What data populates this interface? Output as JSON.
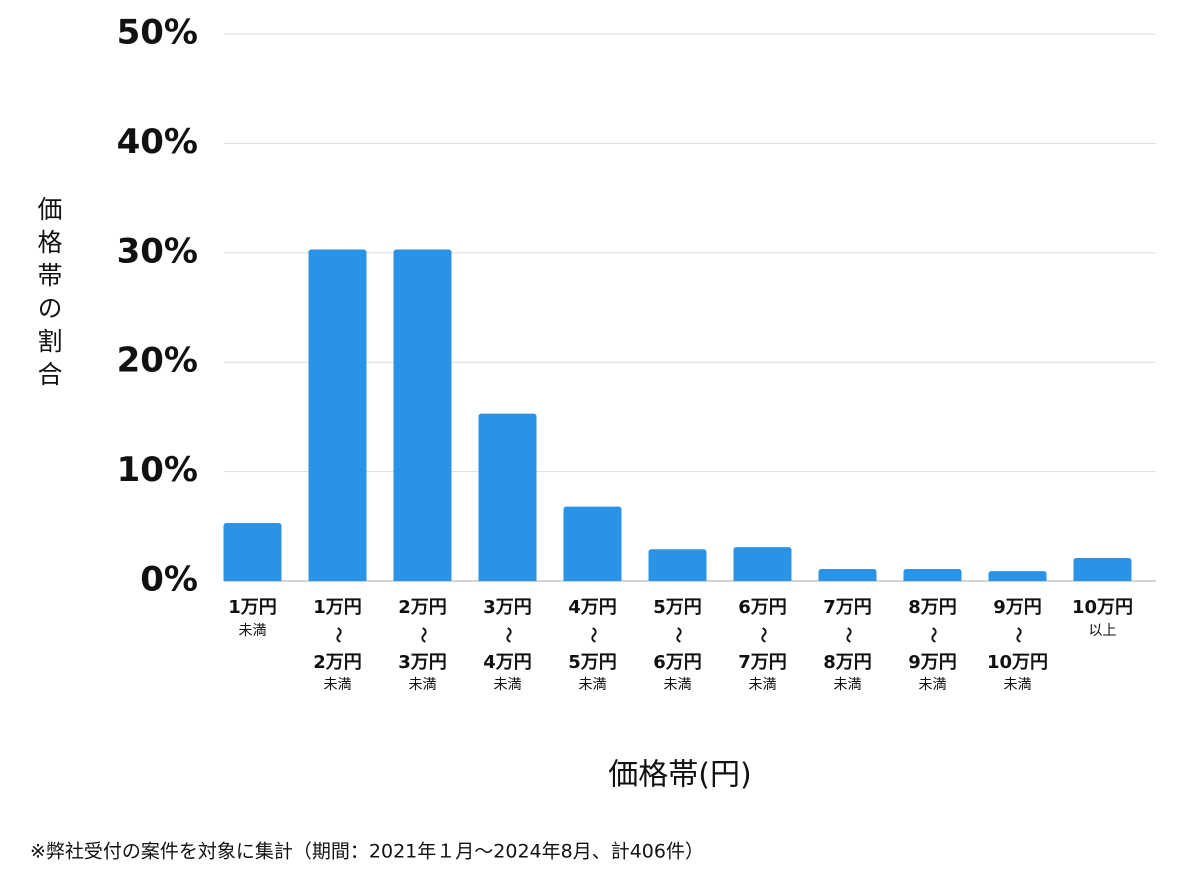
{
  "chart_data": {
    "type": "bar",
    "x_label": "価格帯(円)",
    "y_label": "価格帯の割合",
    "note": "※弊社受付の案件を対象に集計（期間：2021年１月〜2024年8月、計406件）",
    "categories": [
      [
        "1万円",
        "未満"
      ],
      [
        "1万円",
        "〜",
        "2万円",
        "未満"
      ],
      [
        "2万円",
        "〜",
        "3万円",
        "未満"
      ],
      [
        "3万円",
        "〜",
        "4万円",
        "未満"
      ],
      [
        "4万円",
        "〜",
        "5万円",
        "未満"
      ],
      [
        "5万円",
        "〜",
        "6万円",
        "未満"
      ],
      [
        "6万円",
        "〜",
        "7万円",
        "未満"
      ],
      [
        "7万円",
        "〜",
        "8万円",
        "未満"
      ],
      [
        "8万円",
        "〜",
        "9万円",
        "未満"
      ],
      [
        "9万円",
        "〜",
        "10万円",
        "未満"
      ],
      [
        "10万円",
        "以上"
      ]
    ],
    "values": [
      5.3,
      30.3,
      30.3,
      15.3,
      6.8,
      2.9,
      3.1,
      1.1,
      1.1,
      0.9,
      2.1
    ],
    "color": "#2b93e6",
    "ylim": [
      0,
      50
    ],
    "yticks": [
      {
        "value": 0,
        "label": "0%"
      },
      {
        "value": 10,
        "label": "10%"
      },
      {
        "value": 20,
        "label": "20%"
      },
      {
        "value": 30,
        "label": "30%"
      },
      {
        "value": 40,
        "label": "40%"
      },
      {
        "value": 50,
        "label": "50%"
      }
    ],
    "grid": true
  }
}
